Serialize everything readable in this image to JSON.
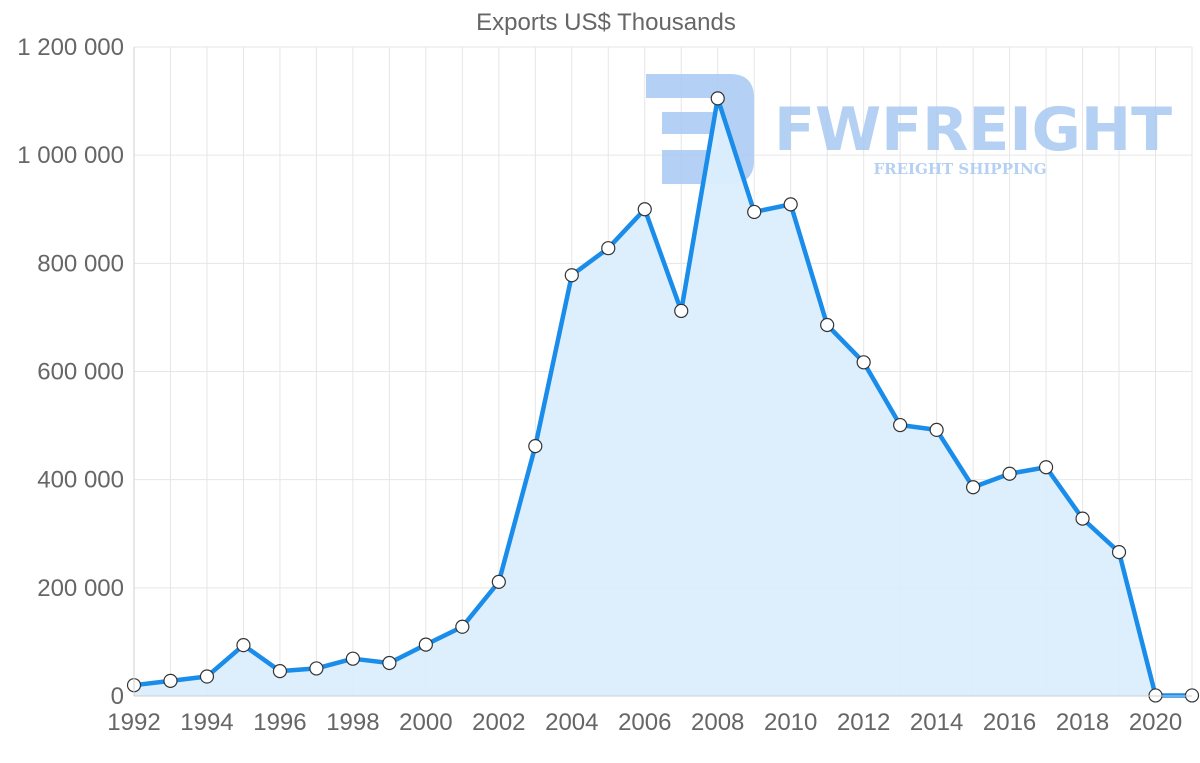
{
  "chart_data": {
    "type": "area",
    "title": "Exports US$ Thousands",
    "xlabel": "",
    "ylabel": "",
    "x": [
      1992,
      1993,
      1994,
      1995,
      1996,
      1997,
      1998,
      1999,
      2000,
      2001,
      2002,
      2003,
      2004,
      2005,
      2006,
      2007,
      2008,
      2009,
      2010,
      2011,
      2012,
      2013,
      2014,
      2015,
      2016,
      2017,
      2018,
      2019,
      2020,
      2021
    ],
    "series": [
      {
        "name": "Exports US$ Thousands",
        "values": [
          20000,
          28000,
          36000,
          94000,
          46000,
          51000,
          69000,
          61000,
          95000,
          128000,
          211000,
          462000,
          778000,
          828000,
          900000,
          712000,
          1105000,
          895000,
          909000,
          686000,
          617000,
          501000,
          492000,
          386000,
          411000,
          423000,
          328000,
          266000,
          1000,
          1000
        ],
        "color": "#1a8cea"
      }
    ],
    "x_tick_labels": [
      "1992",
      "1994",
      "1996",
      "1998",
      "2000",
      "2002",
      "2004",
      "2006",
      "2008",
      "2010",
      "2012",
      "2014",
      "2016",
      "2018",
      "2020"
    ],
    "y_tick_labels": [
      "0",
      "200 000",
      "400 000",
      "600 000",
      "800 000",
      "1 000 000",
      "1 200 000"
    ],
    "y_ticks": [
      0,
      200000,
      400000,
      600000,
      800000,
      1000000,
      1200000
    ],
    "xlim": [
      1992,
      2021
    ],
    "ylim": [
      0,
      1200000
    ],
    "grid": true,
    "fill_color": "#dbeefd",
    "line_color": "#1a8cea"
  },
  "watermark": {
    "brand": "FWFREIGHT",
    "tagline": "FREIGHT SHIPPING",
    "color": "#a7c8f2"
  }
}
